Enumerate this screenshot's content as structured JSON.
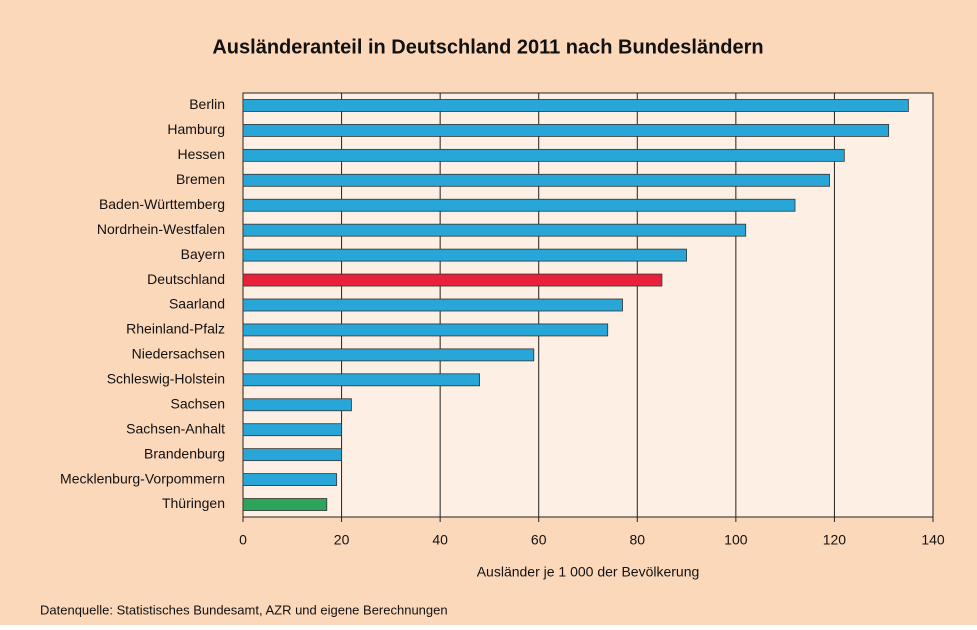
{
  "chart_data": {
    "type": "bar",
    "orientation": "horizontal",
    "title": "Ausländeranteil in Deutschland 2011 nach Bundesländern",
    "x_label": "Ausländer je 1 000 der Bevölkerung",
    "source": "Datenquelle: Statistisches Bundesamt, AZR und eigene Berechnungen",
    "categories": [
      "Berlin",
      "Hamburg",
      "Hessen",
      "Bremen",
      "Baden-Württemberg",
      "Nordrhein-Westfalen",
      "Bayern",
      "Deutschland",
      "Saarland",
      "Rheinland-Pfalz",
      "Niedersachsen",
      "Schleswig-Holstein",
      "Sachsen",
      "Sachsen-Anhalt",
      "Brandenburg",
      "Mecklenburg-Vorpommern",
      "Thüringen"
    ],
    "values": [
      135,
      131,
      122,
      119,
      112,
      102,
      90,
      85,
      77,
      74,
      59,
      48,
      22,
      20,
      20,
      19,
      17
    ],
    "colors": [
      "#29a6d8",
      "#29a6d8",
      "#29a6d8",
      "#29a6d8",
      "#29a6d8",
      "#29a6d8",
      "#29a6d8",
      "#e8203c",
      "#29a6d8",
      "#29a6d8",
      "#29a6d8",
      "#29a6d8",
      "#29a6d8",
      "#29a6d8",
      "#29a6d8",
      "#29a6d8",
      "#2ea35a"
    ],
    "xlim": [
      0,
      140
    ],
    "xticks": [
      0,
      20,
      40,
      60,
      80,
      100,
      120,
      140
    ],
    "grid": true
  }
}
